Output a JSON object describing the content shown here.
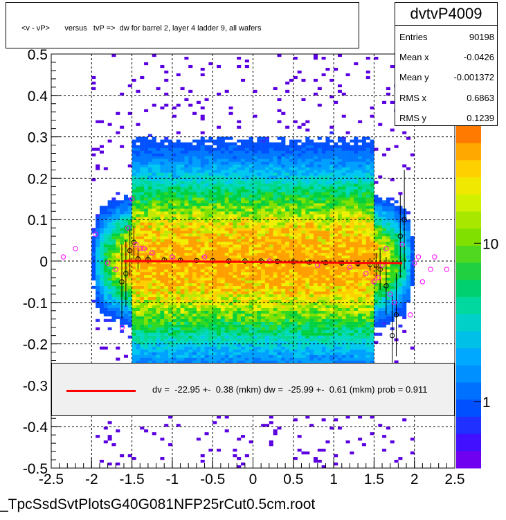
{
  "title": "<v - vP>       versus   tvP =>  dw for barrel 2, layer 4 ladder 9, all wafers",
  "stats": {
    "name": "dvtvP4009",
    "rows": [
      {
        "label": "Entries",
        "value": "90198"
      },
      {
        "label": "Mean x",
        "value": "-0.0426"
      },
      {
        "label": "Mean y",
        "value": "-0.001372"
      },
      {
        "label": "RMS x",
        "value": "0.6863"
      },
      {
        "label": "RMS y",
        "value": "0.1239"
      }
    ]
  },
  "legend": {
    "text": "dv =  -22.95 +-  0.38 (mkm) dw =  -25.99 +-  0.61 (mkm) prob = 0.911"
  },
  "footer": "_TpcSsdSvtPlotsG40G081NFP25rCut0.5cm.root",
  "colors": {
    "fit_line": "#ff0000",
    "profile_markers": "#000000",
    "alt_markers": "#ff00ff"
  },
  "chart_data": {
    "type": "heatmap",
    "xlim": [
      -2.5,
      2.5
    ],
    "ylim": [
      -0.5,
      0.5
    ],
    "x_ticks": [
      "-2.5",
      "-2",
      "-1.5",
      "-1",
      "-0.5",
      "0",
      "0.5",
      "1",
      "1.5",
      "2",
      "2.5"
    ],
    "y_ticks": [
      "-0.5",
      "-0.4",
      "-0.3",
      "-0.2",
      "-0.1",
      "0",
      "0.1",
      "0.2",
      "0.3",
      "0.4",
      "0.5"
    ],
    "grid": true,
    "colorbar_labels": [
      {
        "text": "1",
        "value": 1
      },
      {
        "text": "10",
        "value": 10
      }
    ],
    "fit": {
      "x": [
        -1.6,
        1.85
      ],
      "y": [
        0.0,
        -0.005
      ]
    },
    "profile": [
      {
        "x": -1.625,
        "y": -0.05,
        "err": 0.09
      },
      {
        "x": -1.575,
        "y": -0.03,
        "err": 0.08
      },
      {
        "x": -1.525,
        "y": 0.025,
        "err": 0.06
      },
      {
        "x": -1.475,
        "y": 0.045,
        "err": 0.04
      },
      {
        "x": -1.425,
        "y": 0.005,
        "err": 0.025
      },
      {
        "x": -1.3,
        "y": 0.004,
        "err": 0.01
      },
      {
        "x": -1.1,
        "y": 0.003,
        "err": 0.005
      },
      {
        "x": -0.9,
        "y": 0.002,
        "err": 0.004
      },
      {
        "x": -0.7,
        "y": 0.001,
        "err": 0.003
      },
      {
        "x": -0.5,
        "y": 0.001,
        "err": 0.003
      },
      {
        "x": -0.3,
        "y": 0.0,
        "err": 0.003
      },
      {
        "x": -0.1,
        "y": 0.0,
        "err": 0.003
      },
      {
        "x": 0.1,
        "y": 0.0,
        "err": 0.003
      },
      {
        "x": 0.3,
        "y": -0.001,
        "err": 0.003
      },
      {
        "x": 0.5,
        "y": -0.002,
        "err": 0.003
      },
      {
        "x": 0.7,
        "y": -0.003,
        "err": 0.004
      },
      {
        "x": 0.9,
        "y": -0.004,
        "err": 0.004
      },
      {
        "x": 1.1,
        "y": -0.005,
        "err": 0.005
      },
      {
        "x": 1.3,
        "y": -0.006,
        "err": 0.008
      },
      {
        "x": 1.45,
        "y": -0.008,
        "err": 0.015
      },
      {
        "x": 1.525,
        "y": -0.01,
        "err": 0.03
      },
      {
        "x": 1.575,
        "y": -0.02,
        "err": 0.05
      },
      {
        "x": 1.65,
        "y": -0.06,
        "err": 0.07
      },
      {
        "x": 1.725,
        "y": -0.18,
        "err": 0.1
      },
      {
        "x": 1.775,
        "y": -0.13,
        "err": 0.1
      },
      {
        "x": 1.825,
        "y": 0.06,
        "err": 0.1
      },
      {
        "x": 1.875,
        "y": 0.1,
        "err": 0.12
      }
    ],
    "alt_points": [
      {
        "x": -2.35,
        "y": 0.01
      },
      {
        "x": -2.2,
        "y": 0.03
      },
      {
        "x": -1.95,
        "y": 0.065
      },
      {
        "x": -1.8,
        "y": -0.005
      },
      {
        "x": -1.7,
        "y": -0.02
      },
      {
        "x": -1.62,
        "y": -0.16
      },
      {
        "x": -1.55,
        "y": 0.08
      },
      {
        "x": -1.5,
        "y": 0.15
      },
      {
        "x": -1.45,
        "y": 0.04
      },
      {
        "x": -1.4,
        "y": 0.03
      },
      {
        "x": -1.35,
        "y": 0.03
      },
      {
        "x": -1.25,
        "y": 0.02
      },
      {
        "x": -1.0,
        "y": 0.01
      },
      {
        "x": -0.6,
        "y": 0.01
      },
      {
        "x": 0.2,
        "y": 0.0
      },
      {
        "x": 0.8,
        "y": -0.01
      },
      {
        "x": 1.2,
        "y": -0.015
      },
      {
        "x": 1.4,
        "y": -0.03
      },
      {
        "x": 1.5,
        "y": -0.05
      },
      {
        "x": 1.55,
        "y": -0.04
      },
      {
        "x": 1.6,
        "y": -0.01
      },
      {
        "x": 1.65,
        "y": 0.03
      },
      {
        "x": 1.7,
        "y": -0.08
      },
      {
        "x": 1.75,
        "y": -0.1
      },
      {
        "x": 1.85,
        "y": 0.04
      },
      {
        "x": 1.95,
        "y": -0.13
      },
      {
        "x": 2.0,
        "y": -0.005
      },
      {
        "x": 2.05,
        "y": 0.01
      },
      {
        "x": 2.1,
        "y": -0.05
      },
      {
        "x": 2.2,
        "y": -0.02
      },
      {
        "x": 2.25,
        "y": 0.01
      },
      {
        "x": 2.4,
        "y": -0.02
      }
    ]
  }
}
